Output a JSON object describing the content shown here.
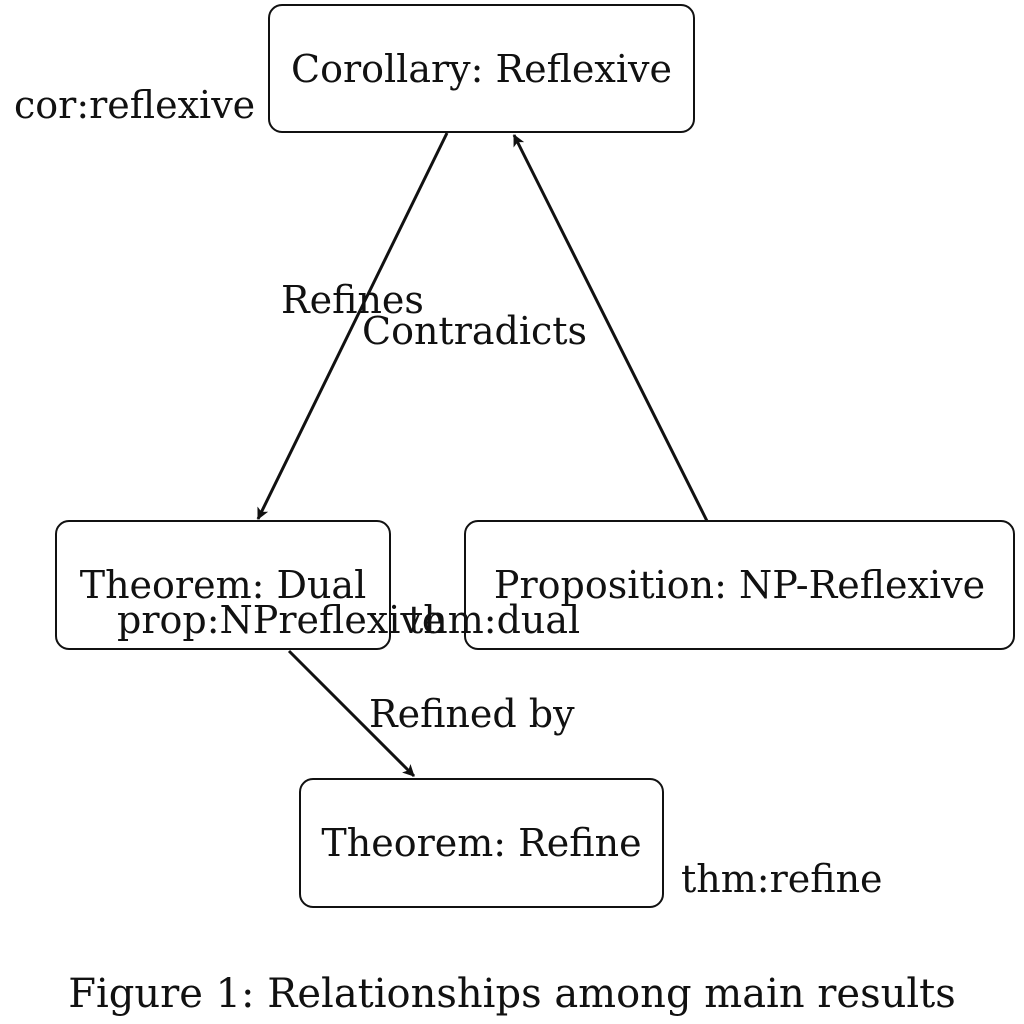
{
  "nodes": {
    "corollary": {
      "title": "Corollary: Reflexive",
      "ref": "cor:reflexive"
    },
    "dual": {
      "title": "Theorem: Dual",
      "ref": "thm:dual"
    },
    "np": {
      "title": "Proposition: NP-Reflexive",
      "ref": "prop:NPreflexive"
    },
    "refine": {
      "title": "Theorem: Refine",
      "ref": "thm:refine"
    }
  },
  "edges": {
    "refines": "Refines",
    "contradicts": "Contradicts",
    "refined_by": "Refined by"
  },
  "caption": "Figure 1: Relationships among main results"
}
